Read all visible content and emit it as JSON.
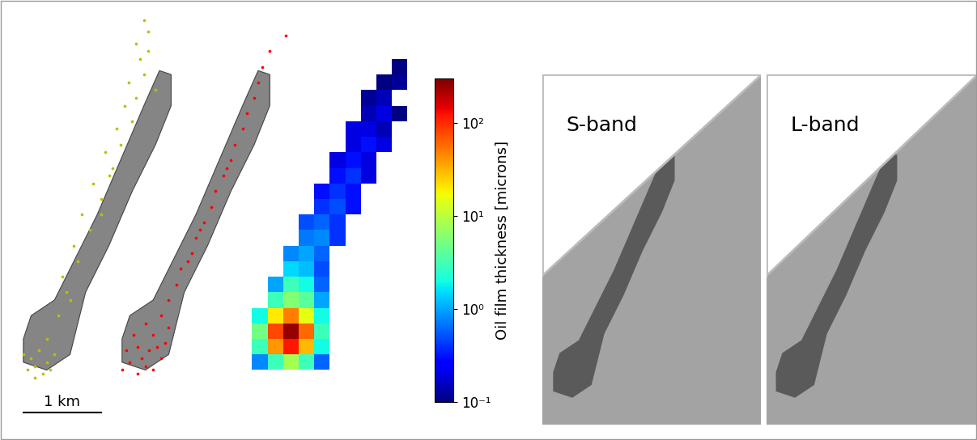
{
  "slick_outline": [
    [
      0.0,
      0.1
    ],
    [
      0.3,
      0.0
    ],
    [
      0.6,
      0.2
    ],
    [
      0.7,
      0.6
    ],
    [
      0.8,
      1.0
    ],
    [
      1.1,
      1.6
    ],
    [
      1.4,
      2.3
    ],
    [
      1.7,
      2.9
    ],
    [
      1.9,
      3.4
    ],
    [
      1.9,
      3.8
    ],
    [
      1.75,
      3.85
    ],
    [
      1.55,
      3.4
    ],
    [
      1.25,
      2.7
    ],
    [
      0.95,
      2.0
    ],
    [
      0.65,
      1.4
    ],
    [
      0.4,
      0.9
    ],
    [
      0.1,
      0.7
    ],
    [
      0.0,
      0.4
    ]
  ],
  "chart_data": [
    {
      "type": "scatter",
      "color": "#bfbf00",
      "xlim": [
        -0.2,
        2.3
      ],
      "ylim": [
        -0.6,
        4.6
      ],
      "tick_labels": false,
      "scale_bar": {
        "length": 1,
        "label": "1 km"
      },
      "points": [
        [
          0.05,
          0.0
        ],
        [
          0.15,
          0.05
        ],
        [
          0.25,
          -0.05
        ],
        [
          0.1,
          0.15
        ],
        [
          0.3,
          0.1
        ],
        [
          0.2,
          0.25
        ],
        [
          0.0,
          0.2
        ],
        [
          0.35,
          0.0
        ],
        [
          0.4,
          0.2
        ],
        [
          0.15,
          -0.1
        ],
        [
          0.3,
          0.4
        ],
        [
          0.45,
          0.7
        ],
        [
          0.55,
          1.0
        ],
        [
          0.5,
          1.2
        ],
        [
          0.7,
          1.4
        ],
        [
          0.65,
          1.6
        ],
        [
          0.85,
          1.8
        ],
        [
          0.75,
          2.0
        ],
        [
          1.0,
          2.2
        ],
        [
          0.9,
          2.4
        ],
        [
          1.1,
          2.5
        ],
        [
          1.05,
          2.8
        ],
        [
          1.25,
          2.9
        ],
        [
          1.2,
          3.1
        ],
        [
          1.4,
          3.2
        ],
        [
          1.3,
          3.4
        ],
        [
          1.45,
          3.5
        ],
        [
          1.35,
          3.7
        ],
        [
          1.55,
          3.8
        ],
        [
          1.5,
          4.0
        ],
        [
          1.6,
          4.1
        ],
        [
          1.45,
          4.2
        ],
        [
          1.6,
          4.35
        ],
        [
          1.7,
          3.6
        ],
        [
          1.0,
          2.0
        ],
        [
          0.6,
          0.9
        ],
        [
          1.15,
          2.6
        ],
        [
          1.55,
          4.5
        ]
      ]
    },
    {
      "type": "scatter",
      "color": "#ff0000",
      "xlim": [
        -0.2,
        2.3
      ],
      "ylim": [
        -0.6,
        4.6
      ],
      "tick_labels": false,
      "points": [
        [
          0.0,
          0.0
        ],
        [
          0.1,
          0.1
        ],
        [
          0.2,
          -0.05
        ],
        [
          0.3,
          0.05
        ],
        [
          0.4,
          0.0
        ],
        [
          0.5,
          0.15
        ],
        [
          0.05,
          0.25
        ],
        [
          0.2,
          0.3
        ],
        [
          0.35,
          0.25
        ],
        [
          0.55,
          0.35
        ],
        [
          0.15,
          0.45
        ],
        [
          0.4,
          0.45
        ],
        [
          0.6,
          0.55
        ],
        [
          0.25,
          0.15
        ],
        [
          0.45,
          0.3
        ],
        [
          0.3,
          0.6
        ],
        [
          0.5,
          0.7
        ],
        [
          0.6,
          0.9
        ],
        [
          0.7,
          1.1
        ],
        [
          0.75,
          1.3
        ],
        [
          0.9,
          1.5
        ],
        [
          0.95,
          1.7
        ],
        [
          1.05,
          1.9
        ],
        [
          1.15,
          2.1
        ],
        [
          1.2,
          2.3
        ],
        [
          1.3,
          2.5
        ],
        [
          1.4,
          2.7
        ],
        [
          1.45,
          2.9
        ],
        [
          1.55,
          3.1
        ],
        [
          1.6,
          3.3
        ],
        [
          1.7,
          3.5
        ],
        [
          1.75,
          3.7
        ],
        [
          1.8,
          3.9
        ],
        [
          1.0,
          1.8
        ],
        [
          0.85,
          1.4
        ],
        [
          1.35,
          2.6
        ],
        [
          1.9,
          4.1
        ],
        [
          2.1,
          4.3
        ]
      ]
    },
    {
      "type": "heatmap",
      "xlim": [
        -0.2,
        2.3
      ],
      "ylim": [
        -0.6,
        4.6
      ],
      "tick_labels": false,
      "log": true,
      "cell_size": 0.2,
      "rows": [
        {
          "y": 0.0,
          "x0": 0.0,
          "values": [
            0.8,
            3,
            8,
            3,
            0.6
          ]
        },
        {
          "y": 0.2,
          "x0": 0.0,
          "values": [
            3,
            40,
            120,
            30,
            2
          ]
        },
        {
          "y": 0.4,
          "x0": 0.0,
          "values": [
            5,
            80,
            250,
            60,
            3
          ]
        },
        {
          "y": 0.6,
          "x0": 0.0,
          "values": [
            2,
            20,
            50,
            15,
            2
          ]
        },
        {
          "y": 0.8,
          "x0": 0.2,
          "values": [
            3,
            6,
            4,
            1
          ]
        },
        {
          "y": 1.0,
          "x0": 0.2,
          "values": [
            1,
            3,
            2,
            0.6
          ]
        },
        {
          "y": 1.2,
          "x0": 0.4,
          "values": [
            1.5,
            1.2,
            0.5
          ]
        },
        {
          "y": 1.4,
          "x0": 0.4,
          "values": [
            0.8,
            1,
            0.6
          ]
        },
        {
          "y": 1.6,
          "x0": 0.6,
          "values": [
            0.7,
            0.8,
            0.4
          ]
        },
        {
          "y": 1.8,
          "x0": 0.6,
          "values": [
            0.5,
            0.6,
            0.4
          ]
        },
        {
          "y": 2.0,
          "x0": 0.8,
          "values": [
            0.4,
            0.5,
            0.3
          ]
        },
        {
          "y": 2.2,
          "x0": 0.8,
          "values": [
            0.3,
            0.4,
            0.3
          ]
        },
        {
          "y": 2.4,
          "x0": 1.0,
          "values": [
            0.3,
            0.4,
            0.2
          ]
        },
        {
          "y": 2.6,
          "x0": 1.0,
          "values": [
            0.2,
            0.3,
            0.2
          ]
        },
        {
          "y": 2.8,
          "x0": 1.2,
          "values": [
            0.2,
            0.3,
            0.2
          ]
        },
        {
          "y": 3.0,
          "x0": 1.2,
          "values": [
            0.2,
            0.2,
            0.15
          ]
        },
        {
          "y": 3.2,
          "x0": 1.4,
          "values": [
            0.15,
            0.2,
            0.1
          ]
        },
        {
          "y": 3.4,
          "x0": 1.4,
          "values": [
            0.12,
            0.15
          ]
        },
        {
          "y": 3.6,
          "x0": 1.6,
          "values": [
            0.1,
            0.12
          ]
        },
        {
          "y": 3.8,
          "x0": 1.8,
          "values": [
            0.1
          ]
        }
      ],
      "colorbar": {
        "label": "Oil film thickness [microns]",
        "range": [
          0.1,
          300
        ],
        "ticks": [
          {
            "value": 0.1,
            "label": "10⁻¹"
          },
          {
            "value": 1,
            "label": "10⁰"
          },
          {
            "value": 10,
            "label": "10¹"
          },
          {
            "value": 100,
            "label": "10²"
          }
        ]
      }
    },
    {
      "type": "image",
      "title": "S-band",
      "xlim": [
        -0.17,
        3.25
      ],
      "ylim": [
        -0.42,
        5.06
      ],
      "tick_labels": false
    },
    {
      "type": "image",
      "title": "L-band",
      "xlim": [
        -0.14,
        3.15
      ],
      "ylim": [
        -0.42,
        5.06
      ],
      "tick_labels": false
    }
  ]
}
